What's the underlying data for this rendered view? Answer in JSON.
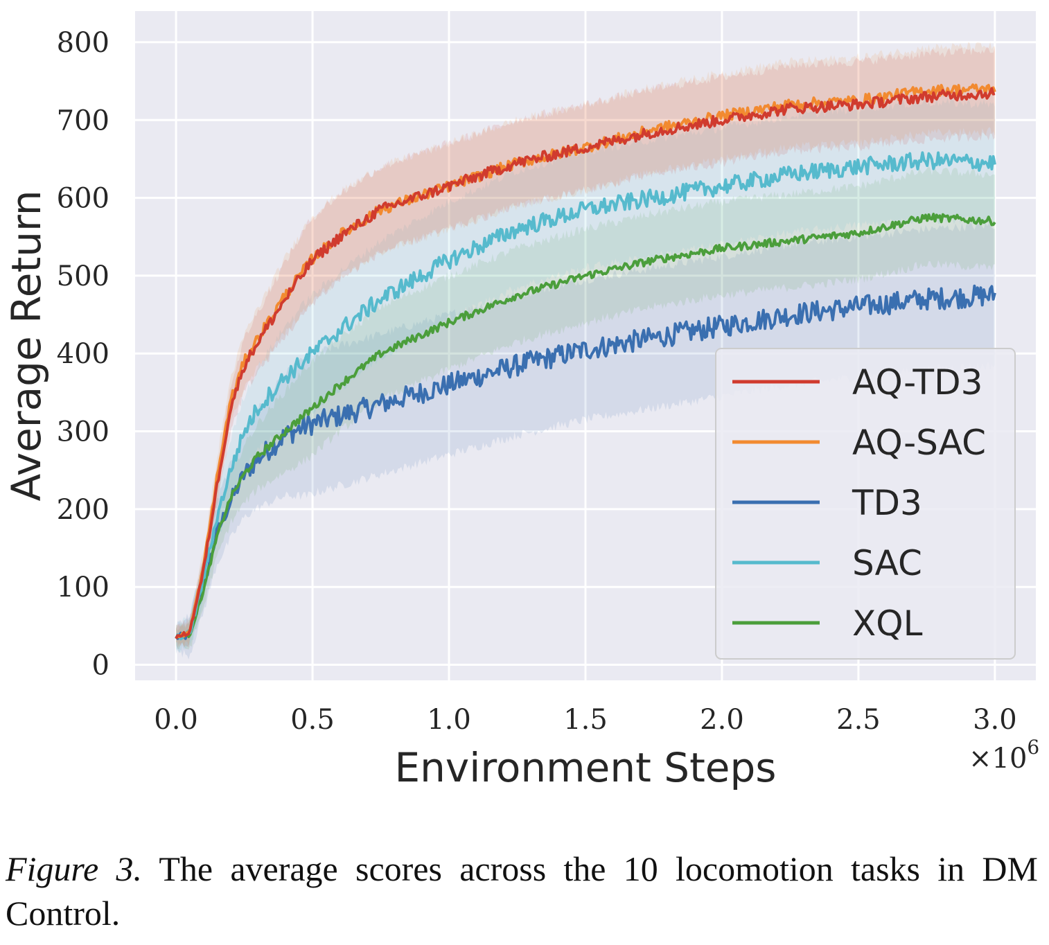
{
  "chart_data": {
    "type": "line",
    "title": "",
    "xlabel": "Environment Steps",
    "ylabel": "Average Return",
    "x_multiplier": "×10",
    "x_multiplier_exp": "6",
    "xlim": [
      -0.15,
      3.15
    ],
    "ylim": [
      -20,
      840
    ],
    "xticks": [
      0.0,
      0.5,
      1.0,
      1.5,
      2.0,
      2.5,
      3.0
    ],
    "xtick_labels": [
      "0.0",
      "0.5",
      "1.0",
      "1.5",
      "2.0",
      "2.5",
      "3.0"
    ],
    "yticks": [
      0,
      100,
      200,
      300,
      400,
      500,
      600,
      700,
      800
    ],
    "ytick_labels": [
      "0",
      "100",
      "200",
      "300",
      "400",
      "500",
      "600",
      "700",
      "800"
    ],
    "grid": true,
    "legend_position": "lower-right",
    "x": [
      0.0,
      0.05,
      0.1,
      0.15,
      0.2,
      0.25,
      0.3,
      0.4,
      0.5,
      0.6,
      0.75,
      1.0,
      1.25,
      1.5,
      1.75,
      2.0,
      2.25,
      2.5,
      2.75,
      3.0
    ],
    "series": [
      {
        "name": "AQ-TD3",
        "color": "#d03b2e",
        "band": 55,
        "values": [
          35,
          42,
          120,
          230,
          330,
          385,
          415,
          470,
          520,
          550,
          585,
          615,
          645,
          665,
          685,
          700,
          715,
          720,
          730,
          735
        ]
      },
      {
        "name": "AQ-SAC",
        "color": "#f28a30",
        "band": 55,
        "values": [
          35,
          42,
          125,
          240,
          340,
          390,
          420,
          475,
          522,
          552,
          585,
          615,
          645,
          665,
          688,
          705,
          720,
          725,
          738,
          740
        ]
      },
      {
        "name": "TD3",
        "color": "#3a6fb0",
        "band": 90,
        "values": [
          35,
          38,
          100,
          170,
          210,
          245,
          265,
          295,
          310,
          320,
          335,
          360,
          385,
          405,
          420,
          435,
          450,
          460,
          470,
          475
        ]
      },
      {
        "name": "SAC",
        "color": "#56bacd",
        "band": 75,
        "values": [
          35,
          40,
          110,
          190,
          250,
          300,
          330,
          370,
          400,
          430,
          470,
          520,
          560,
          585,
          600,
          615,
          630,
          640,
          648,
          645
        ]
      },
      {
        "name": "XQL",
        "color": "#4b9e3b",
        "band": 60,
        "values": [
          35,
          38,
          95,
          165,
          215,
          245,
          268,
          300,
          330,
          360,
          400,
          440,
          475,
          500,
          520,
          535,
          545,
          555,
          575,
          570
        ]
      }
    ]
  },
  "caption": {
    "label": "Figure 3.",
    "text": " The average scores across the 10 locomotion tasks in DM Control."
  }
}
